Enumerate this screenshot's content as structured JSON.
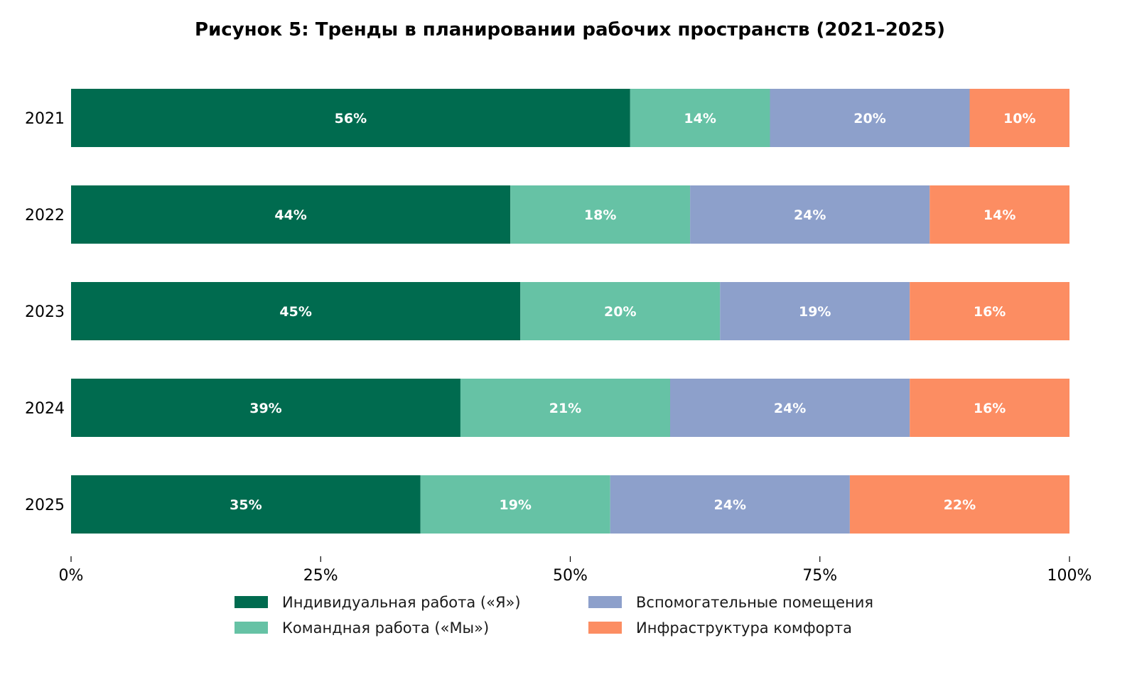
{
  "chart_data": {
    "type": "bar",
    "orientation": "horizontal",
    "stacked": true,
    "title": "Рисунок 5: Тренды в планировании рабочих пространств (2021–2025)",
    "xlabel": "",
    "ylabel": "",
    "xlim": [
      0,
      100
    ],
    "xticks": [
      0,
      25,
      50,
      75,
      100
    ],
    "xtick_labels": [
      "0%",
      "25%",
      "50%",
      "75%",
      "100%"
    ],
    "categories": [
      "2021",
      "2022",
      "2023",
      "2024",
      "2025"
    ],
    "series": [
      {
        "name": "Индивидуальная работа («Я»)",
        "color": "#006b4f",
        "values": [
          56,
          44,
          45,
          39,
          35
        ]
      },
      {
        "name": "Командная работа («Мы»)",
        "color": "#66c2a5",
        "values": [
          14,
          18,
          20,
          21,
          19
        ]
      },
      {
        "name": "Вспомогательные помещения",
        "color": "#8da0cb",
        "values": [
          20,
          24,
          19,
          24,
          24
        ]
      },
      {
        "name": "Инфраструктура комфорта",
        "color": "#fc8d62",
        "values": [
          10,
          14,
          16,
          16,
          22
        ]
      }
    ],
    "data_label_suffix": "%",
    "grid": false,
    "legend_placement": "bottom-center"
  }
}
